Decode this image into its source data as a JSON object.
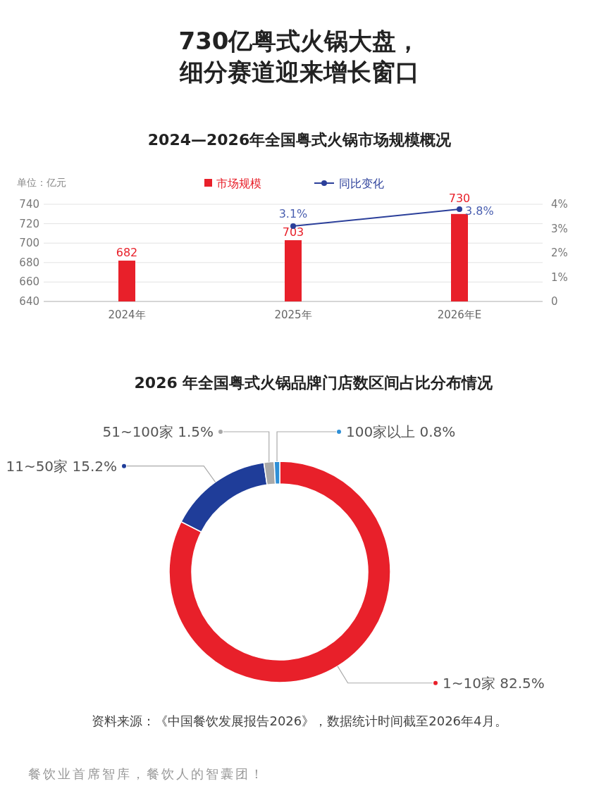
{
  "chart_data": [
    {
      "type": "bar",
      "title": "730亿粤式火锅大盘，细分赛道迎来增长窗口",
      "subtitle": "2024—2026年全国粤式火锅市场规模概况",
      "ylabel": "单位：亿元",
      "categories": [
        "2024年",
        "2025年",
        "2026年E"
      ],
      "series": [
        {
          "name": "市场规模",
          "color": "#e8202a",
          "values": [
            682,
            703,
            730
          ],
          "value_labels": [
            "682",
            "703",
            "730"
          ]
        },
        {
          "name": "同比变化",
          "type": "line",
          "axis": "y2",
          "color": "#2b3f9a",
          "marker": "circle",
          "values": [
            null,
            3.1,
            3.8
          ],
          "value_labels": [
            null,
            "3.1%",
            "3.8%"
          ]
        }
      ],
      "ylim": [
        640,
        740
      ],
      "yticks": [
        640,
        660,
        680,
        700,
        720,
        740
      ],
      "y2lim": [
        0,
        4
      ],
      "y2ticks": [
        0,
        {
          "value": 1,
          "label": "1%"
        },
        {
          "value": 2,
          "label": "2%"
        },
        {
          "value": 3,
          "label": "3%"
        },
        {
          "value": 4,
          "label": "4%"
        }
      ],
      "grid": "y",
      "legend": "top"
    },
    {
      "type": "donut",
      "title": "2026 年全国粤式火锅品牌门店数区间占比分布情况",
      "categories": [
        "1~10家",
        "11~50家",
        "51~100家",
        "100家以上"
      ],
      "values": [
        82.5,
        15.2,
        1.5,
        0.8
      ],
      "value_labels": [
        "82.5%",
        "15.2%",
        "1.5%",
        "0.8%"
      ],
      "colors": [
        "#e8202a",
        "#1f3d99",
        "#a9a9a9",
        "#2e8fd6"
      ],
      "legend": "right",
      "annotations": [
        "资料来源：《中国餐饮发展报告2026》，数据统计时间截至2026年4月。",
        "餐饮业首席智库，餐饮人的智囊团！"
      ]
    }
  ]
}
